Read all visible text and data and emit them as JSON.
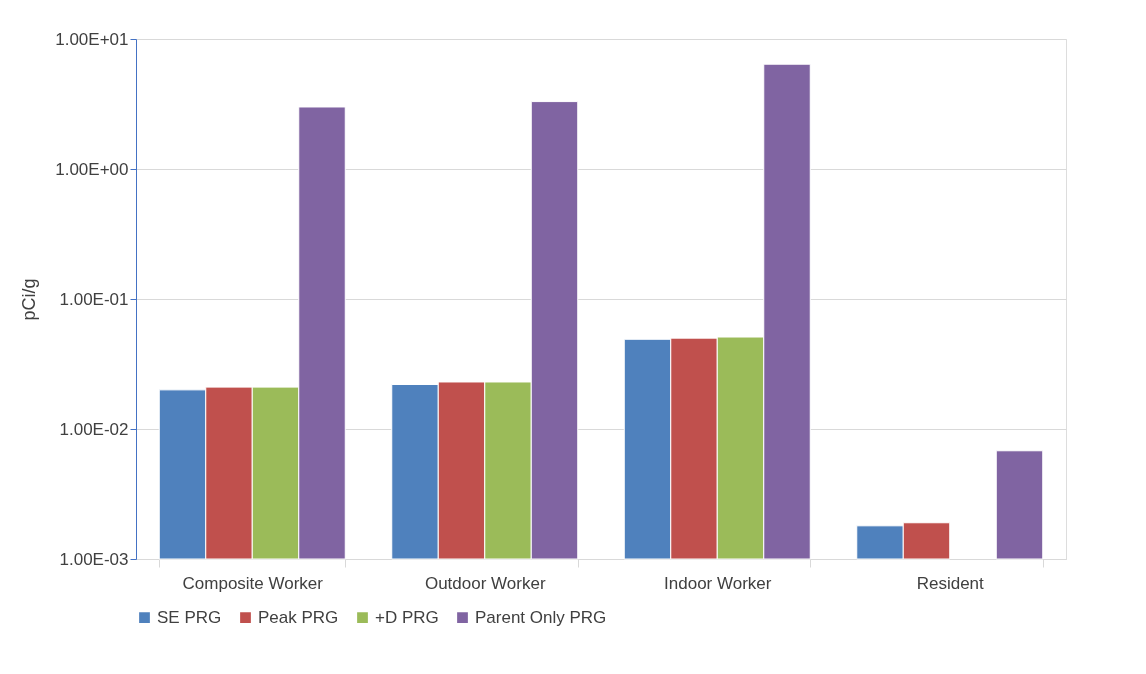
{
  "chart_data": {
    "type": "bar",
    "ylabel": "pCi/g",
    "categories": [
      "Composite Worker",
      "Outdoor Worker",
      "Indoor Worker",
      "Resident"
    ],
    "series": [
      {
        "name": "SE PRG",
        "color": "#4f81bd",
        "values": [
          0.02,
          0.022,
          0.049,
          0.0018
        ]
      },
      {
        "name": "Peak PRG",
        "color": "#c0504d",
        "values": [
          0.021,
          0.023,
          0.05,
          0.0019
        ]
      },
      {
        "name": "+D PRG",
        "color": "#9bbb59",
        "values": [
          0.021,
          0.023,
          0.051,
          null
        ]
      },
      {
        "name": "Parent Only PRG",
        "color": "#8064a2",
        "values": [
          3.0,
          3.3,
          6.4,
          0.0068
        ]
      }
    ],
    "log": "y",
    "ylim": [
      0.001,
      10
    ],
    "yticks": [
      {
        "value": 0.001,
        "label": "1.00E-03"
      },
      {
        "value": 0.01,
        "label": "1.00E-02"
      },
      {
        "value": 0.1,
        "label": "1.00E-01"
      },
      {
        "value": 1,
        "label": "1.00E+00"
      },
      {
        "value": 10,
        "label": "1.00E+01"
      }
    ],
    "grid": "y",
    "legend": "bottom"
  }
}
